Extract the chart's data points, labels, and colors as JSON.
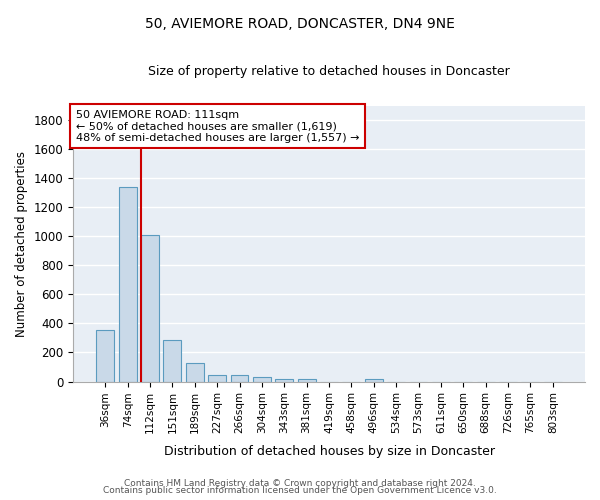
{
  "title": "50, AVIEMORE ROAD, DONCASTER, DN4 9NE",
  "subtitle": "Size of property relative to detached houses in Doncaster",
  "xlabel": "Distribution of detached houses by size in Doncaster",
  "ylabel": "Number of detached properties",
  "bar_labels": [
    "36sqm",
    "74sqm",
    "112sqm",
    "151sqm",
    "189sqm",
    "227sqm",
    "266sqm",
    "304sqm",
    "343sqm",
    "381sqm",
    "419sqm",
    "458sqm",
    "496sqm",
    "534sqm",
    "573sqm",
    "611sqm",
    "650sqm",
    "688sqm",
    "726sqm",
    "765sqm",
    "803sqm"
  ],
  "bar_values": [
    355,
    1340,
    1010,
    285,
    130,
    43,
    43,
    30,
    18,
    18,
    0,
    0,
    18,
    0,
    0,
    0,
    0,
    0,
    0,
    0,
    0
  ],
  "bar_color": "#c9d9e8",
  "bar_edge_color": "#5b9bbf",
  "vline_x_idx": 2,
  "vline_color": "#cc0000",
  "annotation_text": "50 AVIEMORE ROAD: 111sqm\n← 50% of detached houses are smaller (1,619)\n48% of semi-detached houses are larger (1,557) →",
  "annotation_box_color": "white",
  "annotation_box_edge": "#cc0000",
  "ylim": [
    0,
    1900
  ],
  "yticks": [
    0,
    200,
    400,
    600,
    800,
    1000,
    1200,
    1400,
    1600,
    1800
  ],
  "bg_color": "#e8eef5",
  "footer_line1": "Contains HM Land Registry data © Crown copyright and database right 2024.",
  "footer_line2": "Contains public sector information licensed under the Open Government Licence v3.0."
}
